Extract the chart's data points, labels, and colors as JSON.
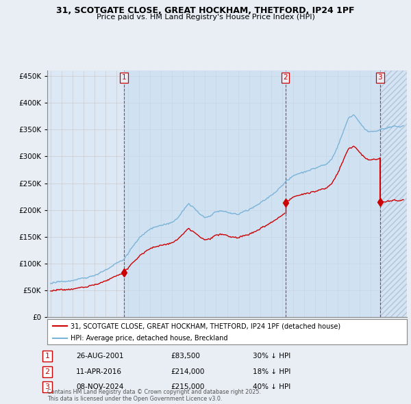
{
  "title1": "31, SCOTGATE CLOSE, GREAT HOCKHAM, THETFORD, IP24 1PF",
  "title2": "Price paid vs. HM Land Registry's House Price Index (HPI)",
  "legend_line1": "31, SCOTGATE CLOSE, GREAT HOCKHAM, THETFORD, IP24 1PF (detached house)",
  "legend_line2": "HPI: Average price, detached house, Breckland",
  "footnote": "Contains HM Land Registry data © Crown copyright and database right 2025.\nThis data is licensed under the Open Government Licence v3.0.",
  "transactions": [
    {
      "num": 1,
      "date": "26-AUG-2001",
      "price": "£83,500",
      "change": "30% ↓ HPI"
    },
    {
      "num": 2,
      "date": "11-APR-2016",
      "price": "£214,000",
      "change": "18% ↓ HPI"
    },
    {
      "num": 3,
      "date": "08-NOV-2024",
      "price": "£215,000",
      "change": "40% ↓ HPI"
    }
  ],
  "sale_dates": [
    2001.65,
    2016.28,
    2024.86
  ],
  "sale_prices": [
    83500,
    214000,
    215000
  ],
  "hpi_color": "#7ab4d8",
  "price_color": "#cc0000",
  "grid_color": "#cccccc",
  "bg_color": "#e8eef4",
  "plot_bg": "#dce8f5",
  "shade_color": "#c8ddf0",
  "ylim": [
    0,
    460000
  ],
  "xlim_start": 1994.5,
  "xlim_end": 2027.5,
  "figwidth": 6.0,
  "figheight": 5.9
}
